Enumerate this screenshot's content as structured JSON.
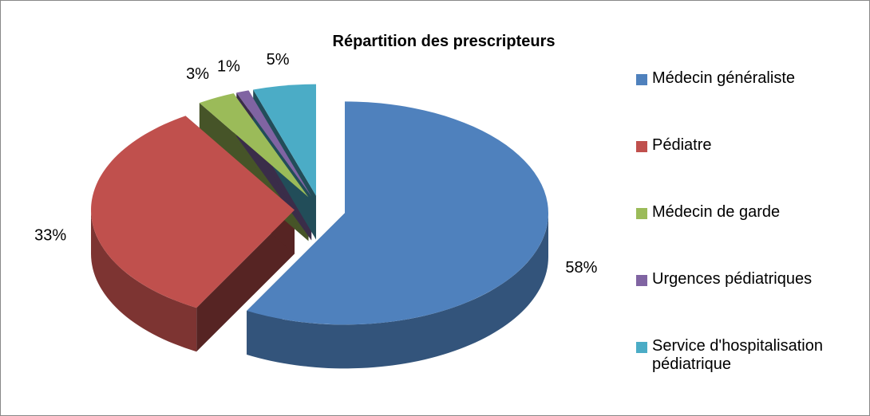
{
  "chart_data": {
    "type": "pie",
    "title": "Répartition des prescripteurs",
    "categories": [
      "Médecin généraliste",
      "Pédiatre",
      "Médecin de garde",
      "Urgences pédiatriques",
      "Service d'hospitalisation pédiatrique"
    ],
    "values": [
      58,
      33,
      3,
      1,
      5
    ],
    "value_labels": [
      "58%",
      "33%",
      "3%",
      "1%",
      "5%"
    ],
    "colors": [
      "#4f81bd",
      "#c0504d",
      "#9bbb59",
      "#8064a2",
      "#4bacc6"
    ],
    "legend": "right"
  }
}
